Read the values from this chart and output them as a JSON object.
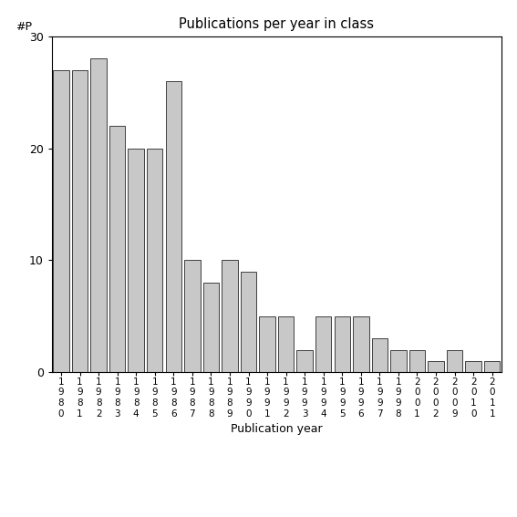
{
  "title": "Publications per year in class",
  "xlabel": "Publication year",
  "ylabel": "#P",
  "bar_color": "#c8c8c8",
  "bar_edge_color": "#000000",
  "background_color": "#ffffff",
  "ylim": [
    0,
    30
  ],
  "yticks": [
    0,
    10,
    20,
    30
  ],
  "years": [
    "1\n9\n8\n0",
    "1\n9\n8\n1",
    "1\n9\n8\n2",
    "1\n9\n8\n3",
    "1\n9\n8\n4",
    "1\n9\n8\n5",
    "1\n9\n8\n6",
    "1\n9\n8\n7",
    "1\n9\n8\n8",
    "1\n9\n8\n9",
    "1\n9\n9\n0",
    "1\n9\n9\n1",
    "1\n9\n9\n2",
    "1\n9\n9\n3",
    "1\n9\n9\n4",
    "1\n9\n9\n5",
    "1\n9\n9\n6",
    "1\n9\n9\n7",
    "1\n9\n9\n8",
    "2\n0\n0\n1",
    "2\n0\n0\n2",
    "2\n0\n0\n9",
    "2\n0\n1\n0",
    "2\n0\n1\n1"
  ],
  "values": [
    27,
    27,
    28,
    22,
    20,
    20,
    26,
    10,
    8,
    10,
    9,
    5,
    5,
    2,
    5,
    5,
    5,
    3,
    2,
    2,
    1,
    2,
    1,
    1
  ]
}
